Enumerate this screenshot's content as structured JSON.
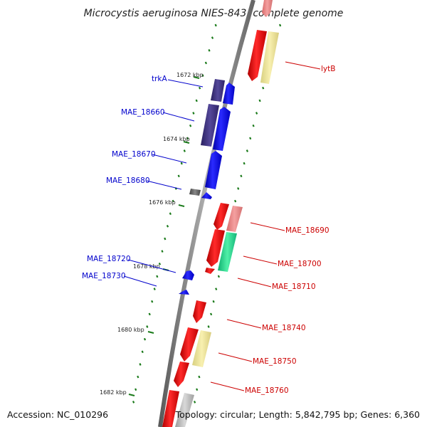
{
  "title": "Microcystis aeruginosa NIES-843, complete genome",
  "footer": {
    "accession": "Accession: NC_010296",
    "summary": "Topology: circular; Length: 5,842,795 bp; Genes: 6,360"
  },
  "colors": {
    "forward": "#ff0000",
    "reverse": "#0000ff",
    "backbone": "#888888",
    "tick": "#1a7a1a"
  },
  "ticks": [
    {
      "label": "1672 kbp",
      "kbp": 1672
    },
    {
      "label": "1674 kbp",
      "kbp": 1674
    },
    {
      "label": "1676 kbp",
      "kbp": 1676
    },
    {
      "label": "1678 kbp",
      "kbp": 1678
    },
    {
      "label": "1680 kbp",
      "kbp": 1680
    },
    {
      "label": "1682 kbp",
      "kbp": 1682
    }
  ],
  "gene_labels": [
    {
      "name": "trkA",
      "strand": "reverse"
    },
    {
      "name": "MAE_18660",
      "strand": "reverse"
    },
    {
      "name": "MAE_18670",
      "strand": "reverse"
    },
    {
      "name": "MAE_18680",
      "strand": "reverse"
    },
    {
      "name": "MAE_18720",
      "strand": "reverse"
    },
    {
      "name": "MAE_18730",
      "strand": "reverse"
    },
    {
      "name": "lytB",
      "strand": "forward"
    },
    {
      "name": "MAE_18690",
      "strand": "forward"
    },
    {
      "name": "MAE_18700",
      "strand": "forward"
    },
    {
      "name": "MAE_18710",
      "strand": "forward"
    },
    {
      "name": "MAE_18740",
      "strand": "forward"
    },
    {
      "name": "MAE_18750",
      "strand": "forward"
    },
    {
      "name": "MAE_18760",
      "strand": "forward"
    }
  ]
}
